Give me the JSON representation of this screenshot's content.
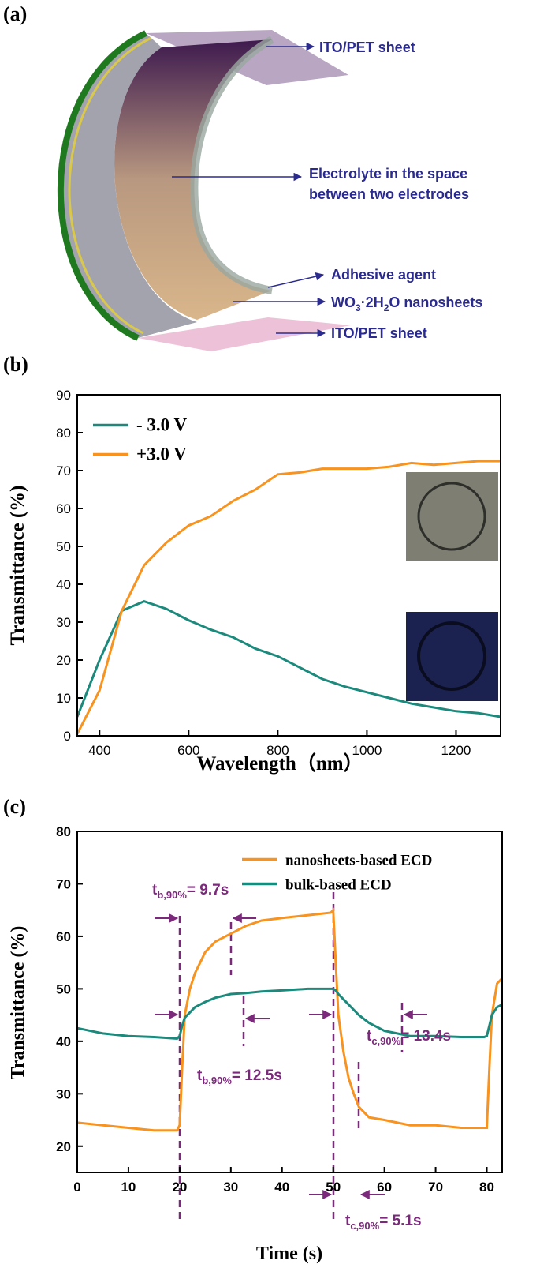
{
  "diagram": {
    "label": "(a)",
    "callouts": [
      "ITO/PET sheet",
      "Electrolyte in the space",
      "between two electrodes",
      "Adhesive agent",
      "ITO/PET sheet"
    ],
    "wo3_label": [
      "WO",
      "3",
      "·2H",
      "2",
      "O nanosheets"
    ]
  },
  "chart_data": [
    {
      "type": "line",
      "label": "(b)",
      "x_label": "Wavelength（nm）",
      "y_label": "Transmittance (%)",
      "xlim": [
        350,
        1300
      ],
      "xticks": [
        400,
        600,
        800,
        1000,
        1200
      ],
      "ylim": [
        0,
        90
      ],
      "yticks": [
        0,
        10,
        20,
        30,
        40,
        50,
        60,
        70,
        80,
        90
      ],
      "legend": "upper left",
      "x": [
        350,
        400,
        450,
        500,
        550,
        600,
        650,
        700,
        750,
        800,
        850,
        900,
        950,
        1000,
        1050,
        1100,
        1150,
        1200,
        1250,
        1300
      ],
      "series": [
        {
          "name": "- 3.0 V",
          "color": "#1b8a7c",
          "values": [
            5,
            20,
            33,
            35.5,
            33.5,
            30.5,
            28,
            26,
            23,
            21,
            18,
            15,
            13,
            11.5,
            10,
            8.5,
            7.5,
            6.5,
            6,
            5
          ]
        },
        {
          "name": "+3.0 V",
          "color": "#f7931e",
          "values": [
            0.5,
            12,
            33,
            45,
            51,
            55.5,
            58,
            62,
            65,
            69,
            69.5,
            70.5,
            70.5,
            70.5,
            71,
            72,
            71.5,
            72,
            72.5,
            72.5
          ]
        }
      ]
    },
    {
      "type": "line",
      "label": "(c)",
      "x_label": "Time (s)",
      "y_label": "Transmittance (%)",
      "xlim": [
        0,
        83
      ],
      "xticks": [
        0,
        10,
        20,
        30,
        40,
        50,
        60,
        70,
        80
      ],
      "ylim": [
        15,
        80
      ],
      "yticks": [
        20,
        30,
        40,
        50,
        60,
        70,
        80
      ],
      "legend": "upper right",
      "x": [
        0,
        5,
        10,
        15,
        19.5,
        20,
        20.5,
        21,
        22,
        23,
        24,
        25,
        27,
        30,
        33,
        36,
        40,
        45,
        49.5,
        50,
        50.5,
        51,
        52,
        53,
        54,
        55,
        57,
        60,
        65,
        70,
        75,
        79.5,
        80,
        80.5,
        81,
        82,
        83
      ],
      "series": [
        {
          "name": "nanosheets-based ECD",
          "color": "#f7931e",
          "values": [
            24.5,
            24,
            23.5,
            23,
            23,
            24,
            35,
            45,
            50,
            53,
            55,
            57,
            59,
            60.5,
            62,
            63,
            63.5,
            64,
            64.5,
            65,
            55,
            45,
            38,
            33,
            30,
            27.5,
            25.5,
            25,
            24,
            24,
            23.5,
            23.5,
            23.5,
            35,
            45,
            51,
            52
          ]
        },
        {
          "name": "bulk-based ECD",
          "color": "#1b8a7c",
          "values": [
            42.5,
            41.5,
            41,
            40.8,
            40.5,
            41,
            43,
            44.5,
            45.5,
            46.5,
            47,
            47.5,
            48.3,
            49,
            49.2,
            49.5,
            49.7,
            50,
            50,
            50,
            49.7,
            49,
            48,
            47,
            46,
            45,
            43.5,
            42,
            41,
            41,
            40.8,
            40.8,
            41,
            43,
            45,
            46.5,
            47
          ]
        }
      ],
      "annotations": [
        [
          "t",
          "b,90%",
          "= 9.7s"
        ],
        [
          "t",
          "b,90%",
          "= 12.5s"
        ],
        [
          "t",
          "c,90%",
          "= 13.4s"
        ],
        [
          "t",
          "c,90%",
          "= 5.1s"
        ]
      ]
    }
  ]
}
